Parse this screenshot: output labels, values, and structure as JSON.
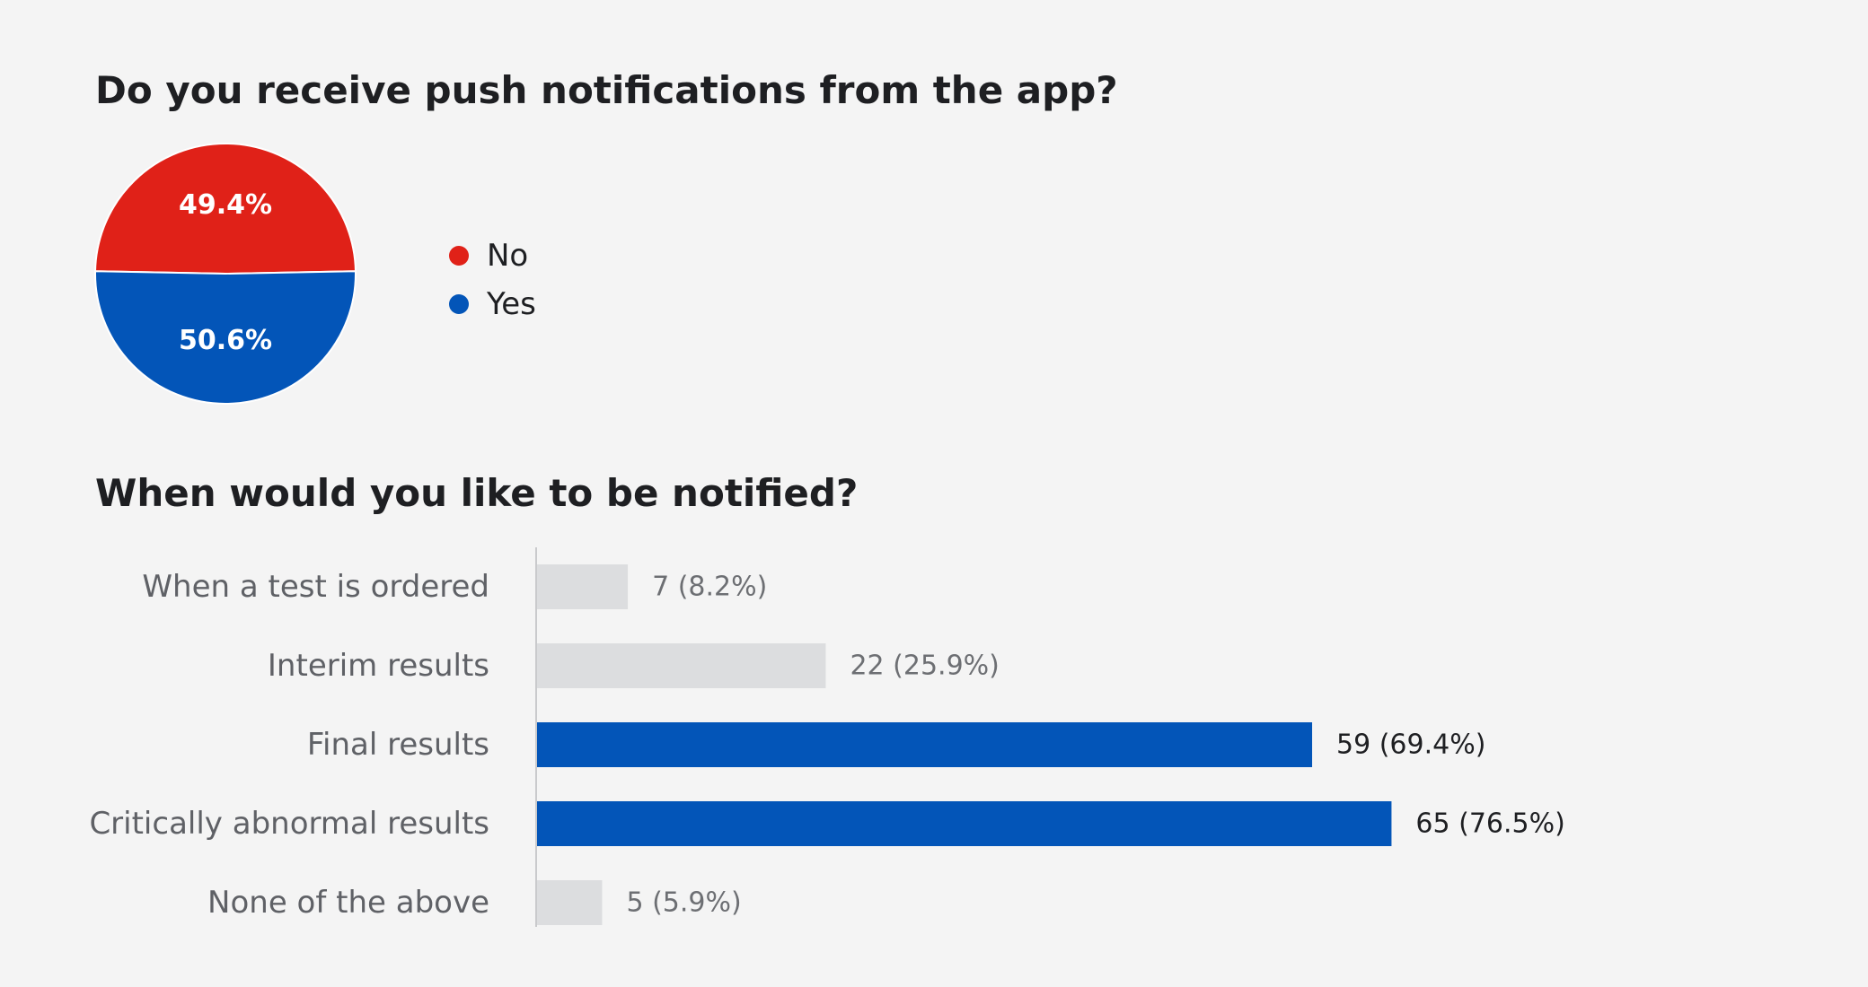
{
  "chart_data": [
    {
      "type": "pie",
      "title": "Do you receive push notifications from the app?",
      "slices": [
        {
          "label": "No",
          "value": 49.4,
          "display": "49.4%",
          "color": "#e02118"
        },
        {
          "label": "Yes",
          "value": 50.6,
          "display": "50.6%",
          "color": "#0355b8"
        }
      ],
      "legend_position": "right"
    },
    {
      "type": "bar",
      "orientation": "horizontal",
      "title": "When would you like to be notified?",
      "categories": [
        "When a test is ordered",
        "Interim results",
        "Final results",
        "Critically abnormal results",
        "None of the above"
      ],
      "values": [
        8.2,
        25.9,
        69.4,
        76.5,
        5.9
      ],
      "counts": [
        7,
        22,
        59,
        65,
        5
      ],
      "data_labels": [
        "7 (8.2%)",
        "22 (25.9%)",
        "59 (69.4%)",
        "65 (76.5%)",
        "5 (5.9%)"
      ],
      "highlighted": [
        false,
        false,
        true,
        true,
        false
      ],
      "colors": {
        "highlight": "#0355b8",
        "muted": "#dcdddf",
        "highlight_label": "#1e1f22",
        "muted_label": "#6d6f73",
        "axis": "#c9cacc"
      },
      "xlim": [
        0,
        100
      ]
    }
  ]
}
